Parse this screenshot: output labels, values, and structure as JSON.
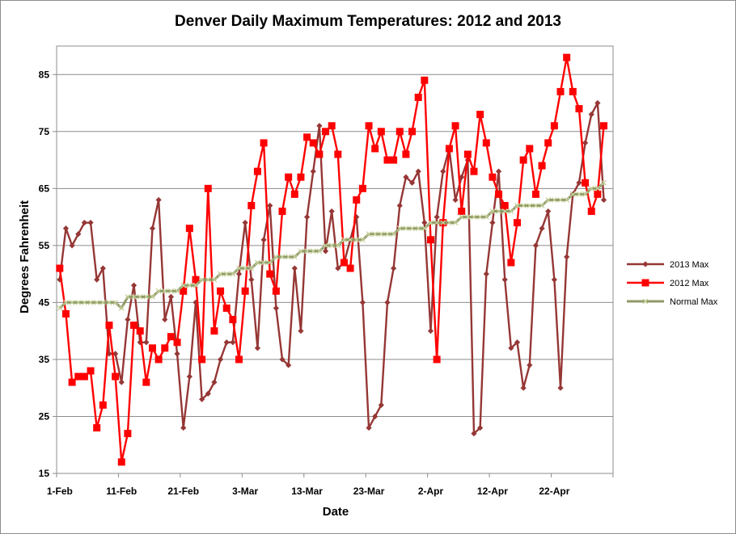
{
  "chart_data": {
    "type": "line",
    "title": "Denver Daily Maximum Temperatures: 2012 and 2013",
    "xlabel": "Date",
    "ylabel": "Degrees Fahrenheit",
    "ylim": [
      15,
      90
    ],
    "yticks": [
      15,
      25,
      35,
      45,
      55,
      65,
      75,
      85
    ],
    "x_tick_labels": [
      "1-Feb",
      "11-Feb",
      "21-Feb",
      "3-Mar",
      "13-Mar",
      "23-Mar",
      "2-Apr",
      "12-Apr",
      "22-Apr"
    ],
    "x_tick_day_index": [
      0,
      10,
      20,
      30,
      40,
      50,
      60,
      70,
      80
    ],
    "x_day_count": 90,
    "gridlines": "horizontal",
    "legend_position": "right",
    "series": [
      {
        "name": "2013 Max",
        "color": "#953735",
        "marker": "diamond",
        "values": [
          49,
          58,
          55,
          57,
          59,
          59,
          49,
          51,
          36,
          36,
          31,
          42,
          48,
          38,
          38,
          58,
          63,
          42,
          46,
          36,
          23,
          32,
          45,
          28,
          29,
          31,
          35,
          38,
          38,
          50,
          59,
          49,
          37,
          56,
          62,
          44,
          35,
          34,
          51,
          40,
          60,
          68,
          76,
          54,
          61,
          51,
          52,
          56,
          60,
          45,
          23,
          25,
          27,
          45,
          51,
          62,
          67,
          66,
          68,
          59,
          40,
          60,
          68,
          72,
          63,
          67,
          70,
          22,
          23,
          50,
          59,
          68,
          49,
          37,
          38,
          30,
          34,
          55,
          58,
          61,
          49,
          30,
          53,
          64,
          66,
          73,
          78,
          80,
          63
        ]
      },
      {
        "name": "2012 Max",
        "color": "#ff0000",
        "marker": "square",
        "values": [
          51,
          43,
          31,
          32,
          32,
          33,
          23,
          27,
          41,
          32,
          17,
          22,
          41,
          40,
          31,
          37,
          35,
          37,
          39,
          38,
          47,
          58,
          49,
          35,
          65,
          40,
          47,
          44,
          42,
          35,
          47,
          62,
          68,
          73,
          50,
          47,
          61,
          67,
          64,
          67,
          74,
          73,
          71,
          75,
          76,
          71,
          52,
          51,
          63,
          65,
          76,
          72,
          75,
          70,
          70,
          75,
          71,
          75,
          81,
          84,
          56,
          35,
          59,
          72,
          76,
          61,
          71,
          68,
          78,
          73,
          67,
          64,
          62,
          52,
          59,
          70,
          72,
          64,
          69,
          73,
          76,
          82,
          88,
          82,
          79,
          66,
          61,
          64,
          76
        ]
      },
      {
        "name": "Normal Max",
        "color": "#8f9a66",
        "marker": "x",
        "values": [
          44,
          45,
          45,
          45,
          45,
          45,
          45,
          45,
          45,
          45,
          44,
          46,
          46,
          46,
          46,
          46,
          47,
          47,
          47,
          47,
          48,
          48,
          48,
          49,
          49,
          49,
          50,
          50,
          50,
          51,
          51,
          51,
          52,
          52,
          52,
          53,
          53,
          53,
          53,
          54,
          54,
          54,
          54,
          55,
          55,
          55,
          56,
          56,
          56,
          56,
          57,
          57,
          57,
          57,
          57,
          58,
          58,
          58,
          58,
          58,
          59,
          59,
          59,
          59,
          59,
          60,
          60,
          60,
          60,
          60,
          61,
          61,
          61,
          61,
          62,
          62,
          62,
          62,
          62,
          63,
          63,
          63,
          63,
          64,
          64,
          64,
          65,
          65,
          66
        ]
      }
    ]
  }
}
